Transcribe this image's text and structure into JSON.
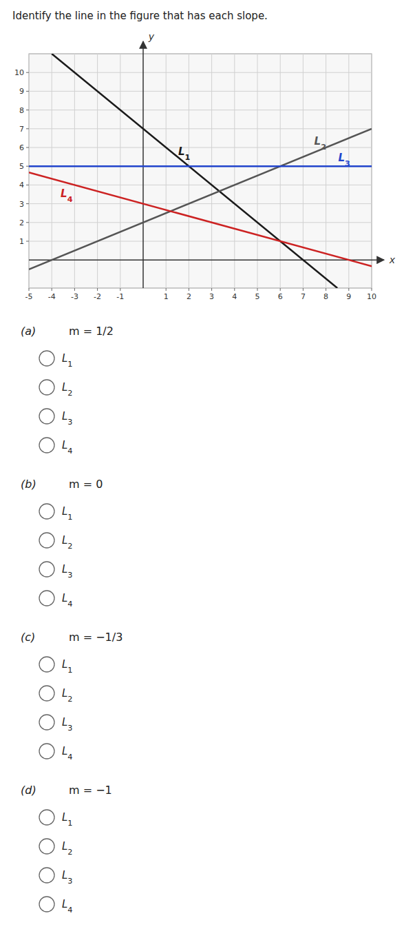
{
  "chart_data": {
    "type": "line",
    "title": "Identify the line in the figure that has each slope.",
    "x_label": "x",
    "y_label": "y",
    "xlim": [
      -5,
      10
    ],
    "ylim": [
      -1.5,
      11
    ],
    "xticks": [
      -5,
      -4,
      -3,
      -2,
      -1,
      1,
      2,
      3,
      4,
      5,
      6,
      7,
      8,
      9,
      10
    ],
    "yticks": [
      1,
      2,
      3,
      4,
      5,
      6,
      7,
      8,
      9,
      10
    ],
    "grid": true,
    "series": [
      {
        "name": "L1",
        "color": "#1a1a1a",
        "x": [
          -4,
          8.5
        ],
        "values": [
          11,
          -1.5
        ]
      },
      {
        "name": "L2",
        "color": "#555555",
        "x": [
          -5,
          10
        ],
        "values": [
          -0.5,
          7
        ]
      },
      {
        "name": "L3",
        "color": "#2244cc",
        "x": [
          -5,
          10
        ],
        "values": [
          5,
          5
        ]
      },
      {
        "name": "L4",
        "color": "#cc2222",
        "x": [
          -5,
          10
        ],
        "values": [
          4.6665,
          -0.333
        ]
      }
    ],
    "annotations": [
      {
        "label": "(a)",
        "text": "m = 1/2",
        "options": [
          "L1",
          "L2",
          "L3",
          "L4"
        ]
      },
      {
        "label": "(b)",
        "text": "m = 0",
        "options": [
          "L1",
          "L2",
          "L3",
          "L4"
        ]
      },
      {
        "label": "(c)",
        "text": "m = −1/3",
        "options": [
          "L1",
          "L2",
          "L3",
          "L4"
        ]
      },
      {
        "label": "(d)",
        "text": "m = −1",
        "options": [
          "L1",
          "L2",
          "L3",
          "L4"
        ]
      }
    ]
  }
}
